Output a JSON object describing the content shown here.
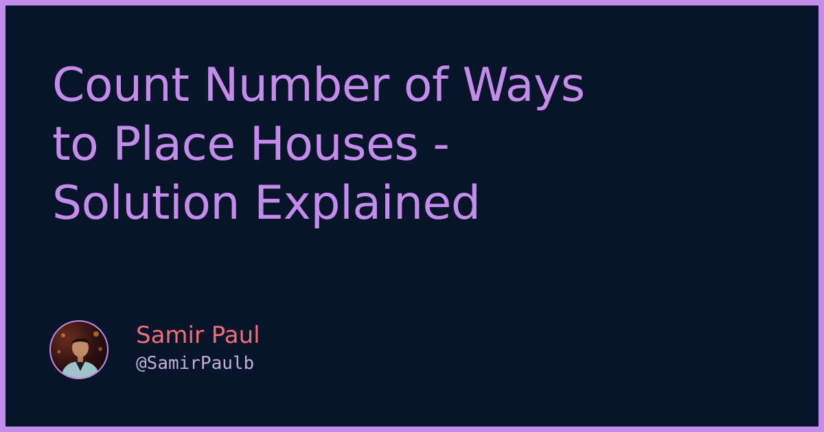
{
  "title_lines": [
    "Count Number of Ways",
    "to Place Houses -",
    "Solution Explained"
  ],
  "author": {
    "name": "Samir Paul",
    "handle": "@SamirPaulb",
    "avatar_icon": "person-portrait-icon"
  },
  "colors": {
    "frame": "#c48cea",
    "background": "#07142a",
    "title": "#c48cea",
    "author_name": "#ee6f78",
    "author_handle": "#bfb0d6"
  }
}
